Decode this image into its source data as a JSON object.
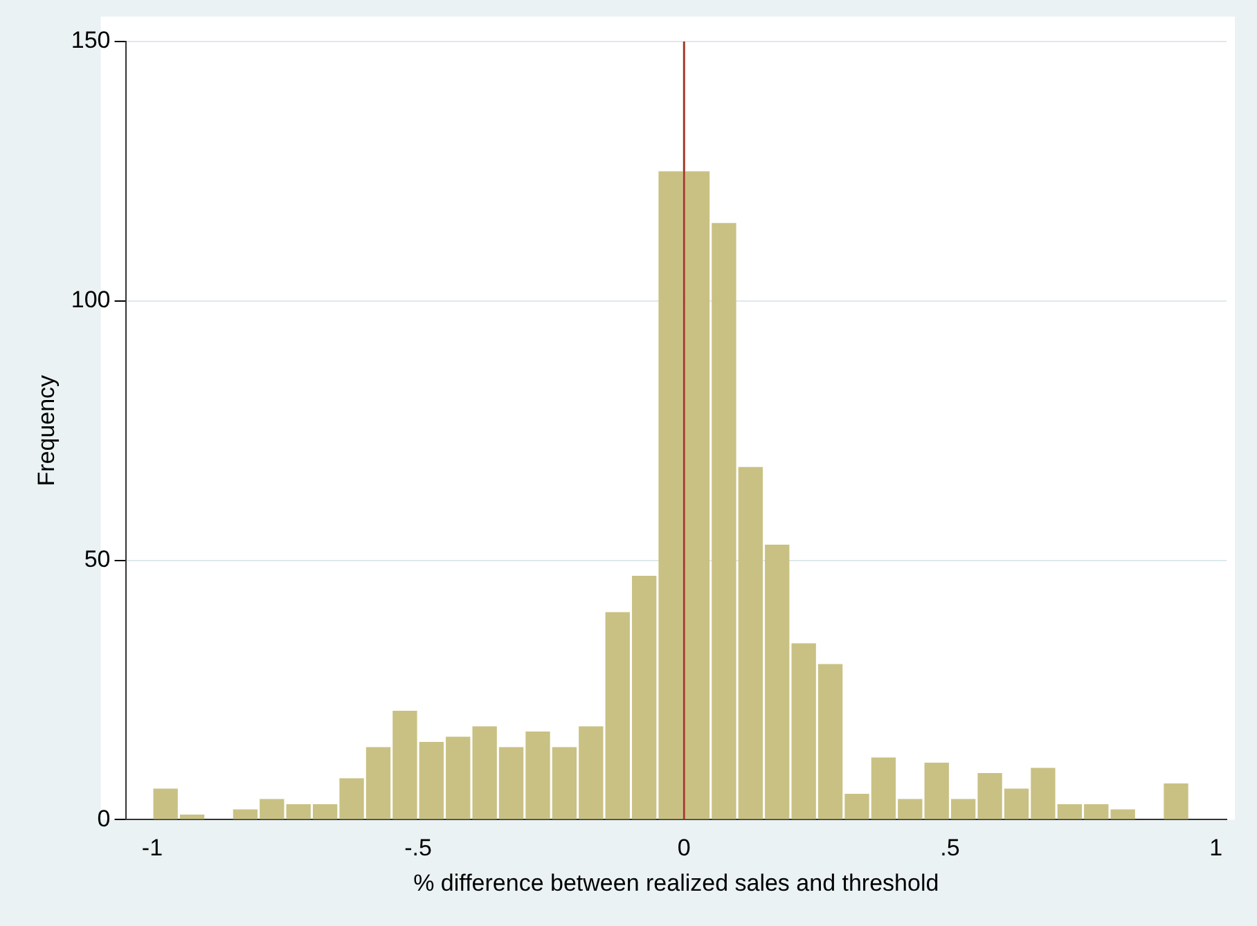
{
  "chart_data": {
    "type": "histogram",
    "xlabel": "% difference between realized sales and threshold",
    "ylabel": "Frequency",
    "bins": [
      -1,
      -0.95,
      -0.9,
      -0.85,
      -0.8,
      -0.75,
      -0.7,
      -0.65,
      -0.6,
      -0.55,
      -0.5,
      -0.45,
      -0.4,
      -0.35,
      -0.3,
      -0.25,
      -0.2,
      -0.15,
      -0.1,
      -0.05,
      0,
      0.05,
      0.1,
      0.15,
      0.2,
      0.25,
      0.3,
      0.35,
      0.4,
      0.45,
      0.5,
      0.55,
      0.6,
      0.65,
      0.7,
      0.75,
      0.8,
      0.85,
      0.9,
      0.95
    ],
    "values": [
      6,
      1,
      0,
      2,
      4,
      3,
      3,
      8,
      14,
      21,
      15,
      16,
      18,
      14,
      17,
      14,
      18,
      40,
      47,
      125,
      125,
      115,
      68,
      53,
      34,
      30,
      5,
      12,
      4,
      11,
      4,
      9,
      6,
      10,
      3,
      3,
      2,
      0,
      7
    ],
    "color": "#c9c183",
    "xlim": [
      -1.05,
      1.02
    ],
    "xticks": [
      {
        "value": -1,
        "label": "-1"
      },
      {
        "value": -0.5,
        "label": "-.5"
      },
      0,
      {
        "value": 0.5,
        "label": ".5"
      },
      1
    ],
    "ylim": [
      0,
      150
    ],
    "yticks": [
      0,
      50,
      100,
      150
    ],
    "grid": "y",
    "ref_lines": [
      {
        "axis": "x",
        "value": 0,
        "color": "#a33a2c"
      }
    ]
  }
}
